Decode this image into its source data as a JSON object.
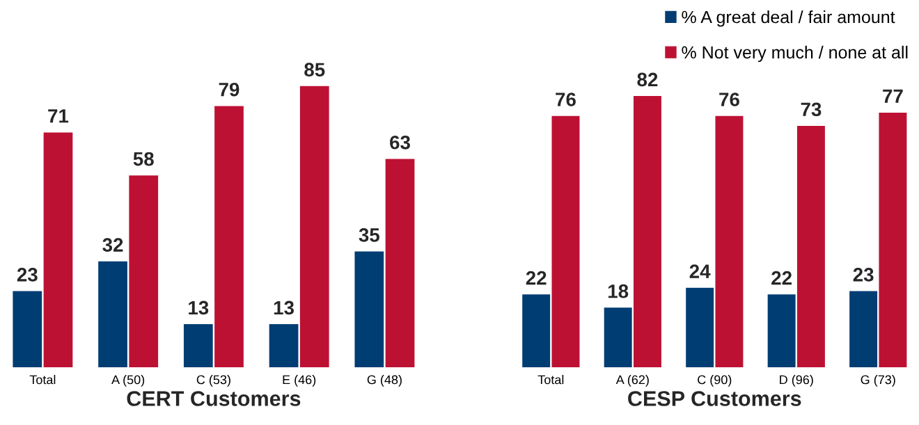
{
  "chart_data": [
    {
      "type": "bar",
      "xlabel": "CERT Customers",
      "categories": [
        "Total",
        "A (50)",
        "C (53)",
        "E (46)",
        "G (48)"
      ],
      "data_labels": true,
      "grid": false,
      "legend": false,
      "series": [
        {
          "color": "#003d73",
          "values": [
            23,
            32,
            13,
            13,
            35
          ]
        },
        {
          "color": "#bd1133",
          "values": [
            71,
            58,
            79,
            85,
            63
          ]
        }
      ]
    },
    {
      "type": "bar",
      "xlabel": "CESP Customers",
      "categories": [
        "Total",
        "A (62)",
        "C (90)",
        "D (96)",
        "G (73)"
      ],
      "data_labels": true,
      "grid": false,
      "legend": "top right",
      "series": [
        {
          "name": "% A great deal / fair amount",
          "color": "#003d73",
          "values": [
            22,
            18,
            24,
            22,
            23
          ]
        },
        {
          "name": "% Not very much / none at all",
          "color": "#bd1133",
          "values": [
            76,
            82,
            76,
            73,
            77
          ]
        }
      ]
    }
  ]
}
